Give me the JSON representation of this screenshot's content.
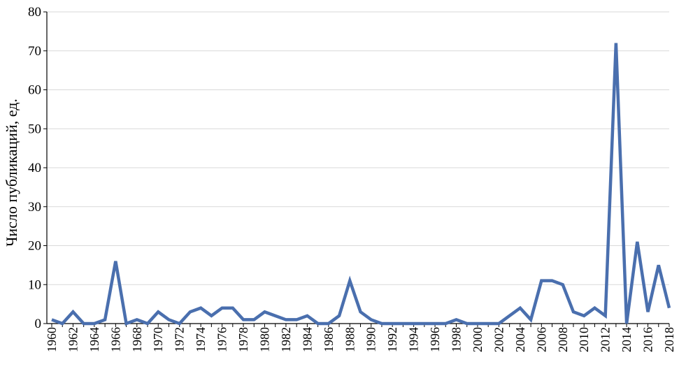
{
  "chart_data": {
    "type": "line",
    "title": "",
    "xlabel": "",
    "ylabel": "Число публикаций, ед.",
    "ylim": [
      0,
      80
    ],
    "yticks": [
      0,
      10,
      20,
      30,
      40,
      50,
      60,
      70,
      80
    ],
    "grid": true,
    "legend": "none",
    "line_color": "#4a6fae",
    "x": [
      1960,
      1961,
      1962,
      1963,
      1964,
      1965,
      1966,
      1967,
      1968,
      1969,
      1970,
      1971,
      1972,
      1973,
      1974,
      1975,
      1976,
      1977,
      1978,
      1979,
      1980,
      1981,
      1982,
      1983,
      1984,
      1985,
      1986,
      1987,
      1988,
      1989,
      1990,
      1991,
      1992,
      1993,
      1994,
      1995,
      1996,
      1997,
      1998,
      1999,
      2000,
      2001,
      2002,
      2003,
      2004,
      2005,
      2006,
      2007,
      2008,
      2009,
      2010,
      2011,
      2012,
      2013,
      2014,
      2015,
      2016,
      2017,
      2018
    ],
    "xtick_labels": [
      "1960",
      "1962",
      "1964",
      "1966",
      "1968",
      "1970",
      "1972",
      "1974",
      "1976",
      "1978",
      "1980",
      "1982",
      "1984",
      "1986",
      "1988",
      "1990",
      "1992",
      "1994",
      "1996",
      "1998",
      "2000",
      "2002",
      "2004",
      "2006",
      "2008",
      "2010",
      "2012",
      "2014",
      "2016",
      "2018"
    ],
    "series": [
      {
        "values": [
          1,
          0,
          3,
          0,
          0,
          1,
          16,
          0,
          1,
          0,
          3,
          1,
          0,
          3,
          4,
          2,
          4,
          4,
          1,
          1,
          3,
          2,
          1,
          1,
          2,
          0,
          0,
          2,
          11,
          3,
          1,
          0,
          0,
          0,
          0,
          0,
          0,
          0,
          1,
          0,
          0,
          0,
          0,
          2,
          4,
          1,
          11,
          11,
          10,
          3,
          2,
          4,
          2,
          72,
          0,
          21,
          3,
          15,
          4
        ]
      }
    ]
  }
}
